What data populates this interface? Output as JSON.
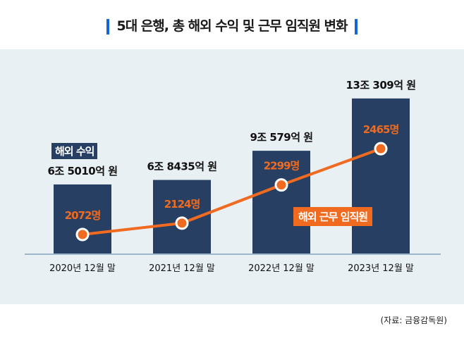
{
  "title": "5대 은행, 총 해외 수익 및 근무 임직원 변화",
  "source": "(자료: 금융감독원)",
  "colors": {
    "bar": "#263f63",
    "line": "#f06a1f",
    "accent": "#1565d8",
    "panel": "#e9f0f4"
  },
  "chart_data": {
    "type": "bar+line",
    "title": "5대 은행, 총 해외 수익 및 근무 임직원 변화",
    "categories": [
      "2020년 12월 말",
      "2021년 12월 말",
      "2022년 12월 말",
      "2023년 12월 말"
    ],
    "series": [
      {
        "name": "해외 수익",
        "type": "bar",
        "unit": "억 원",
        "values": [
          65010,
          68435,
          90579,
          130309
        ],
        "labels": [
          "6조 5010억 원",
          "6조 8435억 원",
          "9조 579억 원",
          "13조 309억 원"
        ]
      },
      {
        "name": "해외 근무 임직원",
        "type": "line",
        "unit": "명",
        "values": [
          2072,
          2124,
          2299,
          2465
        ],
        "labels": [
          "2072명",
          "2124명",
          "2299명",
          "2465명"
        ]
      }
    ]
  }
}
